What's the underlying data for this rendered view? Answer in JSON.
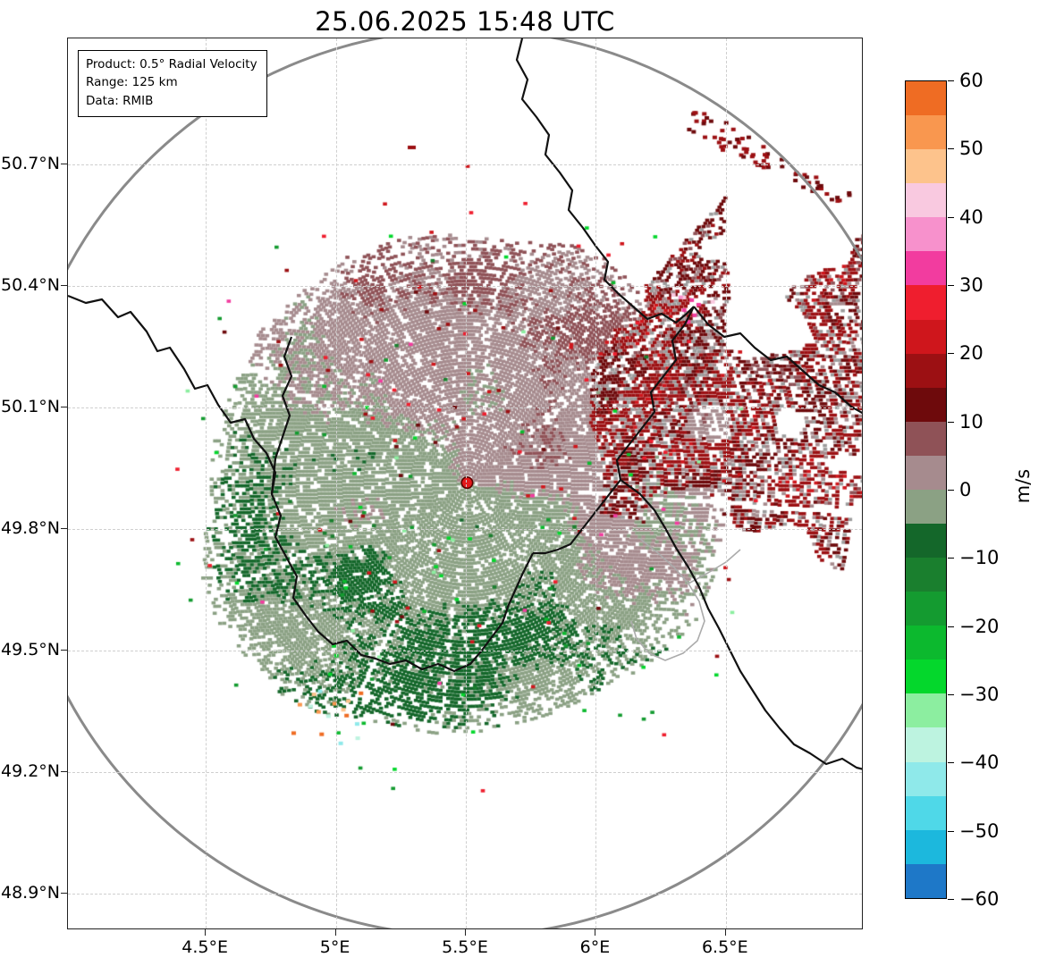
{
  "title": "25.06.2025 15:48 UTC",
  "info_box": {
    "product": "Product: 0.5° Radial Velocity",
    "range": "Range: 125 km",
    "source": "Data: RMIB"
  },
  "colors": {
    "range_ring": "#8a8a8a",
    "border": "#111111",
    "border_minor": "#ababab",
    "grid": "#cfcfcf",
    "radar_dot": "#e31a1c",
    "radar_dot_edge": "#5a0000",
    "missing_data": "#9c9c9c",
    "plot_frame": "#222222"
  },
  "chart_data": {
    "type": "heatmap",
    "title": "25.06.2025 15:48 UTC",
    "product": "0.5° Radial Velocity",
    "range_km": 125,
    "data_source": "RMIB",
    "units": "m/s",
    "x_axis": {
      "ticks": [
        "4.5°E",
        "5°E",
        "5.5°E",
        "6°E",
        "6.5°E"
      ],
      "tick_values": [
        4.5,
        5.0,
        5.5,
        6.0,
        6.5
      ],
      "range": [
        3.97,
        7.03
      ]
    },
    "y_axis": {
      "ticks": [
        "50.7°N",
        "50.4°N",
        "50.1°N",
        "49.8°N",
        "49.5°N",
        "49.2°N",
        "48.9°N"
      ],
      "tick_values": [
        50.7,
        50.4,
        50.1,
        49.8,
        49.5,
        49.2,
        48.9
      ],
      "range": [
        48.81,
        51.01
      ]
    },
    "radar_site": {
      "lon": 5.505,
      "lat": 49.914
    },
    "colorbar": {
      "label": "m/s",
      "min": -60,
      "max": 60,
      "segment_step": 5,
      "ticks": [
        "60",
        "50",
        "40",
        "30",
        "20",
        "10",
        "0",
        "−10",
        "−20",
        "−30",
        "−40",
        "−50",
        "−60"
      ],
      "tick_values": [
        60,
        50,
        40,
        30,
        20,
        10,
        0,
        -10,
        -20,
        -30,
        -40,
        -50,
        -60
      ],
      "colors_top_to_bottom": [
        "#ef6c23",
        "#f9974f",
        "#fdc38c",
        "#f9c9e0",
        "#f791cc",
        "#f23c9f",
        "#ef1e2e",
        "#cf161c",
        "#9c1013",
        "#6e0a0c",
        "#8f5257",
        "#a68b8e",
        "#8ba184",
        "#14672a",
        "#1a7f2e",
        "#149b30",
        "#0cb92e",
        "#04d72c",
        "#8ceea0",
        "#bdf3e0",
        "#8fe9ea",
        "#4fd8e8",
        "#1cb8dd",
        "#1e78c8"
      ]
    },
    "field_summary": {
      "pattern": "velocity dipole around radar site",
      "inbound_sector": "SSW half: green, 0 to −10 m/s",
      "outbound_sector": "NNE half: gray-mauve to brown-red, 0 to +10 m/s",
      "strong_outbound_band": "ENE of radar: dark red +10 to +20 m/s, extending to plot edge",
      "scatter": "isolated bright green/red/pink speckles around periphery"
    }
  }
}
